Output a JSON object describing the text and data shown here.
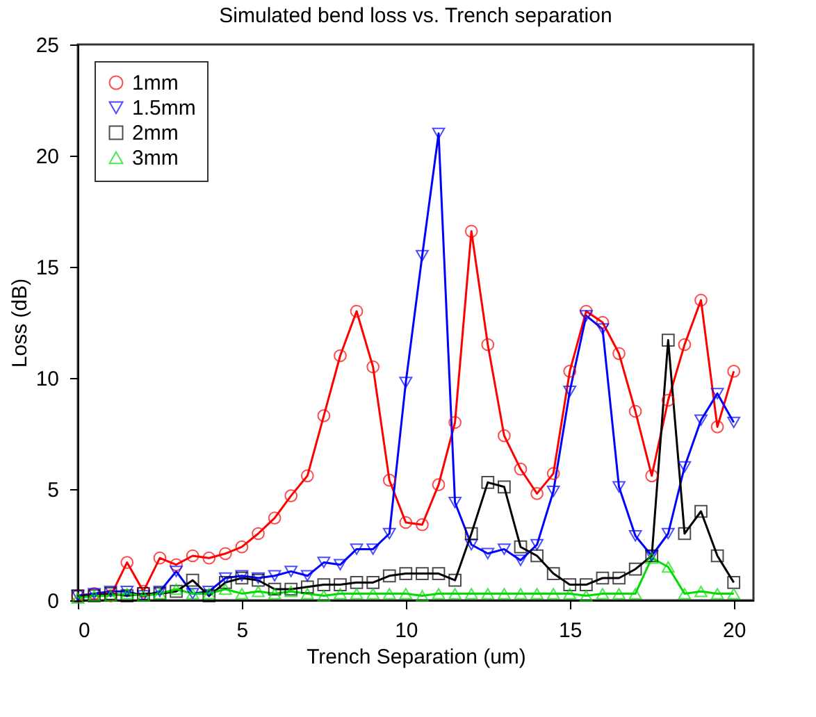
{
  "chart_data": {
    "type": "line",
    "title": "Simulated bend loss vs. Trench separation",
    "xlabel": "Trench Separation (um)",
    "ylabel": "Loss (dB)",
    "x": [
      0,
      0.5,
      1,
      1.5,
      2,
      2.5,
      3,
      3.5,
      4,
      4.5,
      5,
      5.5,
      6,
      6.5,
      7,
      7.5,
      8,
      8.5,
      9,
      9.5,
      10,
      10.5,
      11,
      11.5,
      12,
      12.5,
      13,
      13.5,
      14,
      14.5,
      15,
      15.5,
      16,
      16.5,
      17,
      17.5,
      18,
      18.5,
      19,
      19.5,
      20
    ],
    "series": [
      {
        "name": "1mm",
        "color": "#ff0000",
        "marker": "circle",
        "values": [
          0.2,
          0.3,
          0.2,
          1.7,
          0.4,
          1.9,
          1.6,
          2.0,
          1.9,
          2.1,
          2.4,
          3.0,
          3.7,
          4.7,
          5.6,
          8.3,
          11.0,
          13.0,
          10.5,
          5.4,
          3.5,
          3.4,
          5.2,
          8.0,
          16.6,
          11.5,
          7.4,
          5.9,
          4.8,
          5.7,
          10.3,
          13.0,
          12.5,
          11.1,
          8.5,
          5.6,
          9.0,
          11.5,
          13.5,
          7.8,
          10.3
        ]
      },
      {
        "name": "1.5mm",
        "color": "#0000ff",
        "marker": "triangle-down",
        "values": [
          0.2,
          0.3,
          0.4,
          0.4,
          0.2,
          0.4,
          1.3,
          0.3,
          0.4,
          1.0,
          1.1,
          1.0,
          1.1,
          1.3,
          1.1,
          1.7,
          1.6,
          2.3,
          2.3,
          3.0,
          9.8,
          15.5,
          21.0,
          4.4,
          2.5,
          2.1,
          2.3,
          1.8,
          2.5,
          4.9,
          9.4,
          12.8,
          12.2,
          5.1,
          2.9,
          2.0,
          3.0,
          6.0,
          8.1,
          9.3,
          8.0
        ]
      },
      {
        "name": "2mm",
        "color": "#000000",
        "marker": "square",
        "values": [
          0.2,
          0.2,
          0.3,
          0.2,
          0.3,
          0.3,
          0.4,
          0.9,
          0.2,
          0.8,
          1.0,
          0.9,
          0.5,
          0.5,
          0.6,
          0.7,
          0.7,
          0.8,
          0.8,
          1.1,
          1.2,
          1.2,
          1.2,
          0.9,
          3.0,
          5.3,
          5.1,
          2.4,
          2.0,
          1.2,
          0.7,
          0.7,
          1.0,
          1.0,
          1.4,
          2.0,
          11.7,
          3.0,
          4.0,
          2.0,
          0.8
        ]
      },
      {
        "name": "3mm",
        "color": "#00dd00",
        "marker": "triangle-up",
        "values": [
          0.1,
          0.2,
          0.2,
          0.3,
          0.2,
          0.3,
          0.5,
          0.3,
          0.3,
          0.5,
          0.3,
          0.4,
          0.3,
          0.4,
          0.3,
          0.2,
          0.3,
          0.3,
          0.3,
          0.3,
          0.3,
          0.2,
          0.3,
          0.3,
          0.3,
          0.3,
          0.3,
          0.3,
          0.3,
          0.3,
          0.3,
          0.2,
          0.3,
          0.3,
          0.3,
          1.9,
          1.5,
          0.3,
          0.4,
          0.3,
          0.3
        ]
      }
    ],
    "xlim": [
      0,
      20.6
    ],
    "ylim": [
      0,
      25
    ],
    "xticks": [
      0,
      5,
      10,
      15,
      20
    ],
    "yticks": [
      0,
      5,
      10,
      15,
      20,
      25
    ],
    "grid": false,
    "legend": "top left",
    "line_style": "solid"
  }
}
